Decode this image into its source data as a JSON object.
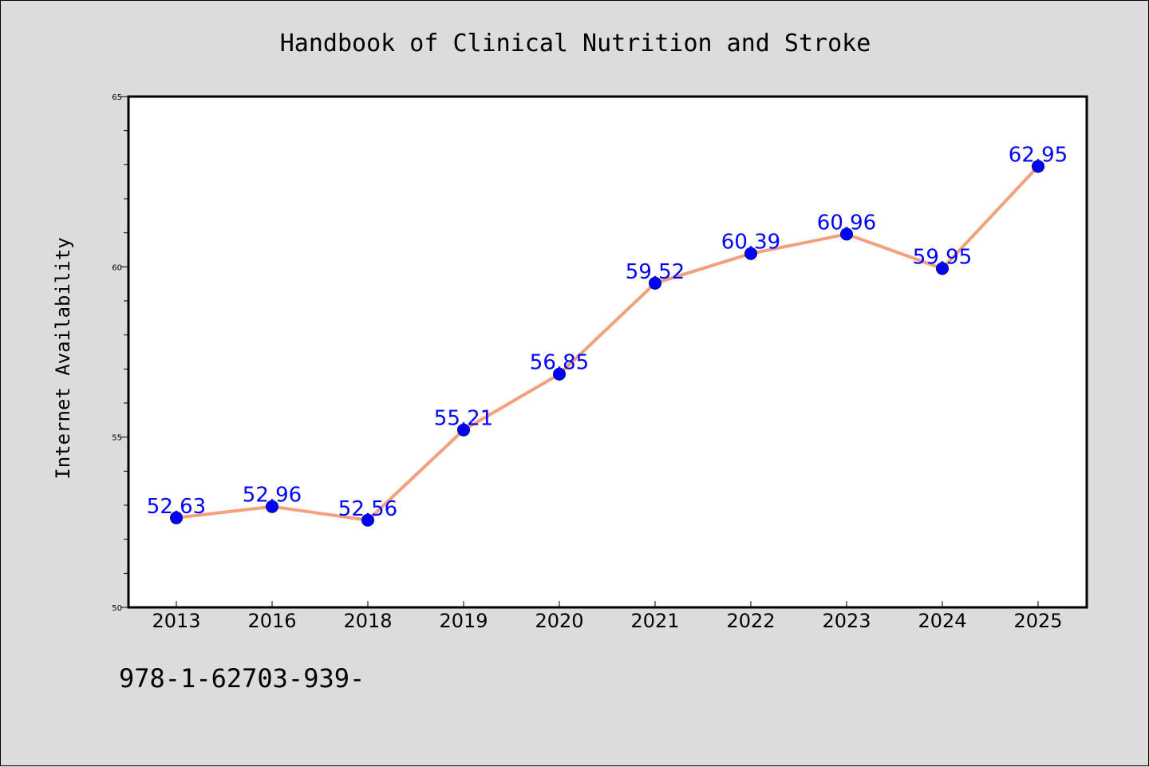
{
  "chart_data": {
    "type": "line",
    "title": "Handbook of Clinical Nutrition and Stroke",
    "xlabel": "",
    "ylabel": "Internet Availability",
    "categories": [
      "2013",
      "2016",
      "2018",
      "2019",
      "2020",
      "2021",
      "2022",
      "2023",
      "2024",
      "2025"
    ],
    "series": [
      {
        "values": [
          52.63,
          52.96,
          52.56,
          55.21,
          56.85,
          59.52,
          60.39,
          60.96,
          59.95,
          62.95
        ],
        "labels": [
          "52.63",
          "52.96",
          "52.56",
          "55.21",
          "56.85",
          "59.52",
          "60.39",
          "60.96",
          "59.95",
          "62.95"
        ],
        "line_color": "#f4a07c",
        "marker_color": "#0000ff",
        "label_color": "#0000ff"
      }
    ],
    "ylim": [
      50,
      65
    ],
    "yticks": [
      "50",
      "55",
      "60",
      "65"
    ],
    "grid": false,
    "plot_background": "#ffffff",
    "figure_background": "#dcdcdc"
  },
  "footer": {
    "text": "978-1-62703-939-"
  }
}
